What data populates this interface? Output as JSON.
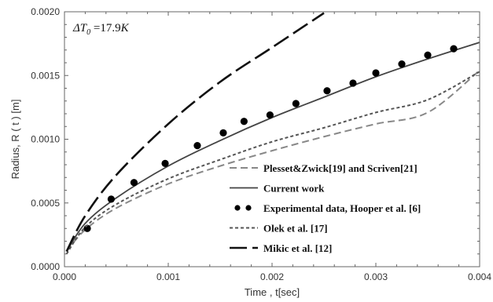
{
  "chart_data": {
    "type": "line",
    "title": "",
    "xlabel": "Time , t[sec]",
    "ylabel": "Radius, R ( t ) [m]",
    "xlim": [
      0,
      0.004
    ],
    "ylim": [
      0,
      0.002
    ],
    "xticks": [
      "0.000",
      "0.001",
      "0.002",
      "0.003",
      "0.004"
    ],
    "yticks": [
      "0.0000",
      "0.0005",
      "0.0010",
      "0.0015",
      "0.0020"
    ],
    "annotation": {
      "prefix": "ΔT",
      "subscript": "0",
      "equals": " =17.9",
      "unit": "K"
    },
    "legend_position": "bottom-right",
    "series": [
      {
        "name": "Plesset&Zwick[19] and Scriven[21]",
        "style": "medium-dash",
        "color": "#888888",
        "x": [
          2e-05,
          0.0002,
          0.0005,
          0.001,
          0.0015,
          0.002,
          0.0025,
          0.003,
          0.0035,
          0.004
        ],
        "y": [
          0.00012,
          0.00029,
          0.00046,
          0.00065,
          0.00079,
          0.00091,
          0.00102,
          0.00112,
          0.00121,
          0.00154
        ]
      },
      {
        "name": "Current work",
        "style": "solid",
        "color": "#444444",
        "x": [
          2e-05,
          0.0002,
          0.0005,
          0.001,
          0.0015,
          0.002,
          0.0025,
          0.003,
          0.0035,
          0.004
        ],
        "y": [
          0.00012,
          0.00034,
          0.00054,
          0.00079,
          0.00099,
          0.00117,
          0.00133,
          0.00149,
          0.00163,
          0.00176
        ]
      },
      {
        "name": "Experimental data, Hooper et al. [6]",
        "style": "markers",
        "color": "#000000",
        "x": [
          0.00022,
          0.00045,
          0.00067,
          0.00097,
          0.00128,
          0.00153,
          0.00173,
          0.00198,
          0.00223,
          0.00253,
          0.00278,
          0.003,
          0.00325,
          0.0035,
          0.00375
        ],
        "y": [
          0.0003,
          0.00053,
          0.00066,
          0.00081,
          0.00095,
          0.00105,
          0.00114,
          0.00119,
          0.00128,
          0.00138,
          0.00144,
          0.00152,
          0.00159,
          0.00166,
          0.00171
        ]
      },
      {
        "name": "Olek et al. [17]",
        "style": "short-dash",
        "color": "#555555",
        "x": [
          2e-05,
          0.0002,
          0.0005,
          0.001,
          0.0015,
          0.002,
          0.0025,
          0.003,
          0.0035,
          0.004
        ],
        "y": [
          0.0001,
          0.00031,
          0.00049,
          0.00069,
          0.00084,
          0.00098,
          0.00109,
          0.00121,
          0.00131,
          0.00153
        ]
      },
      {
        "name": "Mikic et al. [12]",
        "style": "long-dash",
        "color": "#111111",
        "x": [
          2e-05,
          0.0002,
          0.0005,
          0.001,
          0.0015,
          0.002,
          0.0025
        ],
        "y": [
          0.00012,
          0.0004,
          0.00072,
          0.00112,
          0.00145,
          0.00172,
          0.00199
        ]
      }
    ]
  }
}
